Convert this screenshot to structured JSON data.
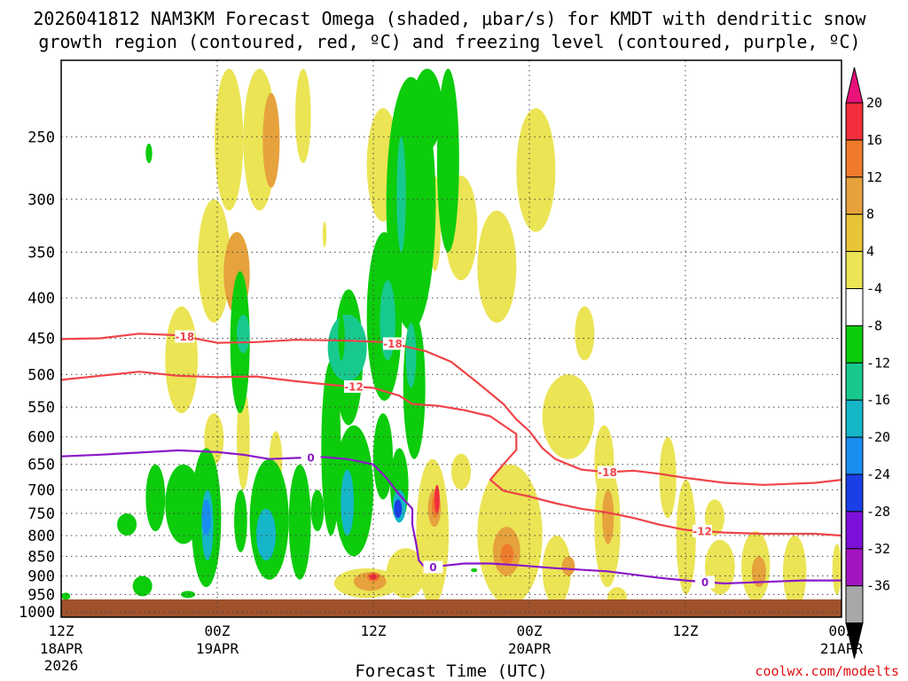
{
  "chart_data": {
    "type": "time-height cross-section (shaded omega with contoured overlays)",
    "title_line1": "2026041812 NAM3KM Forecast Omega (shaded, μbar/s) for KMDT with dendritic snow",
    "title_line2": "growth region (contoured, red, ºC) and freezing level (contoured, purple, ºC)",
    "xlabel": "Forecast Time (UTC)",
    "credit": "coolwx.com/modelts",
    "x_ticks": [
      {
        "label": "12Z",
        "sub1": "18APR",
        "sub2": "2026",
        "hour": 0
      },
      {
        "label": "00Z",
        "sub1": "19APR",
        "sub2": "",
        "hour": 12
      },
      {
        "label": "12Z",
        "sub1": "",
        "sub2": "",
        "hour": 24
      },
      {
        "label": "00Z",
        "sub1": "20APR",
        "sub2": "",
        "hour": 36
      },
      {
        "label": "12Z",
        "sub1": "",
        "sub2": "",
        "hour": 48
      },
      {
        "label": "00Z",
        "sub1": "21APR",
        "sub2": "",
        "hour": 60
      }
    ],
    "x_range_hours": [
      0,
      60
    ],
    "y_ticks_hpa": [
      250,
      300,
      350,
      400,
      450,
      500,
      550,
      600,
      650,
      700,
      750,
      800,
      850,
      900,
      950,
      1000
    ],
    "y_range_hpa": [
      200,
      1015
    ],
    "y_scale": "log-pressure",
    "surface_color": "#a0522d",
    "colorbar": {
      "labels": [
        "20",
        "16",
        "12",
        "8",
        "4",
        "-4",
        "-8",
        "-12",
        "-16",
        "-20",
        "-24",
        "-28",
        "-32",
        "-36"
      ],
      "colors": [
        "#f22d3c",
        "#ef7a2c",
        "#e6a23c",
        "#e8c437",
        "#ebe455",
        "#ffffff",
        "#0ccc0c",
        "#18c98f",
        "#16b6c9",
        "#1a8df0",
        "#1a3fe6",
        "#7d10d9",
        "#a415c2",
        "#a8a8a8"
      ],
      "top_arrow_color": "#e8127a",
      "bottom_arrow_color": "#000000"
    },
    "contours": [
      {
        "name": "-18C dendritic",
        "color": "#ef4448",
        "label": "-18",
        "points": [
          [
            0,
            451
          ],
          [
            3,
            450
          ],
          [
            6,
            444
          ],
          [
            9,
            446
          ],
          [
            12,
            456
          ],
          [
            15,
            455
          ],
          [
            18,
            452
          ],
          [
            22,
            453
          ],
          [
            25,
            455
          ],
          [
            28,
            467
          ],
          [
            30,
            482
          ],
          [
            32,
            512
          ],
          [
            34,
            545
          ],
          [
            35,
            570
          ],
          [
            36,
            590
          ],
          [
            37,
            620
          ],
          [
            38,
            640
          ],
          [
            39,
            650
          ],
          [
            40,
            660
          ],
          [
            42,
            665
          ],
          [
            44,
            662
          ],
          [
            46,
            668
          ],
          [
            48,
            676
          ],
          [
            51,
            686
          ],
          [
            54,
            690
          ],
          [
            58,
            686
          ],
          [
            60,
            680
          ]
        ],
        "label_hours": [
          9.5,
          25.5,
          42
        ]
      },
      {
        "name": "-12C dendritic",
        "color": "#ef4448",
        "label": "-12",
        "points": [
          [
            0,
            508
          ],
          [
            3,
            502
          ],
          [
            6,
            496
          ],
          [
            9,
            502
          ],
          [
            12,
            504
          ],
          [
            15,
            503
          ],
          [
            18,
            510
          ],
          [
            21,
            516
          ],
          [
            24,
            520
          ],
          [
            26,
            532
          ],
          [
            27,
            545
          ],
          [
            29,
            548
          ],
          [
            31,
            555
          ],
          [
            33,
            565
          ],
          [
            35,
            595
          ],
          [
            35,
            623
          ],
          [
            34,
            650
          ],
          [
            33,
            680
          ],
          [
            34,
            702
          ],
          [
            36,
            714
          ],
          [
            38,
            728
          ],
          [
            40,
            740
          ],
          [
            42,
            748
          ],
          [
            44,
            760
          ],
          [
            46,
            775
          ],
          [
            48,
            787
          ],
          [
            51,
            793
          ],
          [
            54,
            796
          ],
          [
            58,
            796
          ],
          [
            60,
            800
          ]
        ],
        "label_hours": [
          22.5,
          49.3
        ]
      },
      {
        "name": "0C freezing level",
        "color": "#8b17c8",
        "label": "0",
        "points": [
          [
            0,
            635
          ],
          [
            3,
            632
          ],
          [
            6,
            628
          ],
          [
            9,
            624
          ],
          [
            12,
            627
          ],
          [
            14,
            632
          ],
          [
            16,
            640
          ],
          [
            18,
            638
          ],
          [
            20,
            636
          ],
          [
            22,
            640
          ],
          [
            24,
            650
          ],
          [
            25,
            676
          ],
          [
            26,
            710
          ],
          [
            27,
            740
          ],
          [
            27,
            775
          ],
          [
            27.3,
            820
          ],
          [
            27.5,
            860
          ],
          [
            28,
            880
          ],
          [
            29,
            875
          ],
          [
            31,
            868
          ],
          [
            33,
            868
          ],
          [
            35,
            872
          ],
          [
            38,
            880
          ],
          [
            42,
            888
          ],
          [
            46,
            905
          ],
          [
            48,
            912
          ],
          [
            51,
            920
          ],
          [
            54,
            916
          ],
          [
            57,
            912
          ],
          [
            60,
            912
          ]
        ],
        "label_hours": [
          19.2,
          28.6,
          49.5
        ]
      }
    ],
    "shaded_cells": [
      {
        "h": [
          11.8,
          14
        ],
        "p": [
          205,
          310
        ],
        "v": 6
      },
      {
        "h": [
          10.5,
          13
        ],
        "p": [
          300,
          430
        ],
        "v": 5
      },
      {
        "h": [
          12.5,
          14.5
        ],
        "p": [
          330,
          420
        ],
        "v": 9
      },
      {
        "h": [
          14,
          16.5
        ],
        "p": [
          205,
          310
        ],
        "v": 6
      },
      {
        "h": [
          15.5,
          16.8
        ],
        "p": [
          220,
          290
        ],
        "v": 10
      },
      {
        "h": [
          18,
          19.2
        ],
        "p": [
          205,
          270
        ],
        "v": 5
      },
      {
        "h": [
          8,
          10.5
        ],
        "p": [
          410,
          560
        ],
        "v": 5
      },
      {
        "h": [
          11,
          12.5
        ],
        "p": [
          560,
          650
        ],
        "v": 5
      },
      {
        "h": [
          23.5,
          26
        ],
        "p": [
          230,
          320
        ],
        "v": 5
      },
      {
        "h": [
          28.3,
          29.2
        ],
        "p": [
          280,
          370
        ],
        "v": 5
      },
      {
        "h": [
          29.5,
          32
        ],
        "p": [
          280,
          380
        ],
        "v": 5
      },
      {
        "h": [
          32,
          35
        ],
        "p": [
          310,
          430
        ],
        "v": 5
      },
      {
        "h": [
          35,
          38
        ],
        "p": [
          230,
          330
        ],
        "v": 5
      },
      {
        "h": [
          39.5,
          41
        ],
        "p": [
          410,
          480
        ],
        "v": 5
      },
      {
        "h": [
          37,
          41
        ],
        "p": [
          500,
          640
        ],
        "v": 5
      },
      {
        "h": [
          41,
          42.5
        ],
        "p": [
          580,
          720
        ],
        "v": 5
      },
      {
        "h": [
          32,
          37
        ],
        "p": [
          650,
          980
        ],
        "v": 5
      },
      {
        "h": [
          33.2,
          35.3
        ],
        "p": [
          780,
          900
        ],
        "v": 9
      },
      {
        "h": [
          33.8,
          34.8
        ],
        "p": [
          820,
          870
        ],
        "v": 13
      },
      {
        "h": [
          37,
          39.2
        ],
        "p": [
          800,
          980
        ],
        "v": 5
      },
      {
        "h": [
          38.5,
          39.5
        ],
        "p": [
          850,
          900
        ],
        "v": 9
      },
      {
        "h": [
          41,
          43
        ],
        "p": [
          650,
          930
        ],
        "v": 5
      },
      {
        "h": [
          41.6,
          42.5
        ],
        "p": [
          700,
          820
        ],
        "v": 9
      },
      {
        "h": [
          42,
          43.5
        ],
        "p": [
          930,
          990
        ],
        "v": 5
      },
      {
        "h": [
          46,
          47.3
        ],
        "p": [
          600,
          760
        ],
        "v": 5
      },
      {
        "h": [
          47.3,
          48.8
        ],
        "p": [
          680,
          950
        ],
        "v": 5
      },
      {
        "h": [
          49.5,
          51
        ],
        "p": [
          720,
          800
        ],
        "v": 5
      },
      {
        "h": [
          49.5,
          51.8
        ],
        "p": [
          810,
          950
        ],
        "v": 5
      },
      {
        "h": [
          52.3,
          54.5
        ],
        "p": [
          790,
          970
        ],
        "v": 5
      },
      {
        "h": [
          53.1,
          54.2
        ],
        "p": [
          850,
          930
        ],
        "v": 9
      },
      {
        "h": [
          55.5,
          57.3
        ],
        "p": [
          800,
          990
        ],
        "v": 5
      },
      {
        "h": [
          59.3,
          60
        ],
        "p": [
          820,
          950
        ],
        "v": 5
      },
      {
        "h": [
          30,
          31.5
        ],
        "p": [
          630,
          700
        ],
        "v": 5
      },
      {
        "h": [
          25,
          28
        ],
        "p": [
          830,
          960
        ],
        "v": 5
      },
      {
        "h": [
          27.3,
          29.8
        ],
        "p": [
          640,
          980
        ],
        "v": 5
      },
      {
        "h": [
          28.2,
          29.2
        ],
        "p": [
          700,
          780
        ],
        "v": 9
      },
      {
        "h": [
          28.5,
          29
        ],
        "p": [
          710,
          760
        ],
        "v": 15
      },
      {
        "h": [
          28.7,
          29.1
        ],
        "p": [
          690,
          750
        ],
        "v": 19
      },
      {
        "h": [
          25,
          26.3
        ],
        "p": [
          640,
          690
        ],
        "v": 6
      },
      {
        "h": [
          21,
          26
        ],
        "p": [
          880,
          960
        ],
        "v": 6
      },
      {
        "h": [
          22.5,
          25
        ],
        "p": [
          890,
          940
        ],
        "v": 9
      },
      {
        "h": [
          23.5,
          24.5
        ],
        "p": [
          890,
          915
        ],
        "v": 15
      },
      {
        "h": [
          23.7,
          24.3
        ],
        "p": [
          895,
          910
        ],
        "v": 19
      },
      {
        "h": [
          13.5,
          14.5
        ],
        "p": [
          520,
          700
        ],
        "v": 6
      },
      {
        "h": [
          16,
          17
        ],
        "p": [
          590,
          700
        ],
        "v": 5
      },
      {
        "h": [
          6.5,
          8
        ],
        "p": [
          650,
          790
        ],
        "v": -6
      },
      {
        "h": [
          4.3,
          5.8
        ],
        "p": [
          750,
          800
        ],
        "v": -6
      },
      {
        "h": [
          8,
          10.8
        ],
        "p": [
          650,
          820
        ],
        "v": -6
      },
      {
        "h": [
          10,
          12.3
        ],
        "p": [
          620,
          930
        ],
        "v": -6
      },
      {
        "h": [
          10.8,
          11.7
        ],
        "p": [
          700,
          860
        ],
        "v": -14
      },
      {
        "h": [
          10.8,
          11.5
        ],
        "p": [
          720,
          800
        ],
        "v": -18
      },
      {
        "h": [
          13,
          14.5
        ],
        "p": [
          370,
          560
        ],
        "v": -6
      },
      {
        "h": [
          13.5,
          14.5
        ],
        "p": [
          420,
          470
        ],
        "v": -10
      },
      {
        "h": [
          13.3,
          14.3
        ],
        "p": [
          700,
          840
        ],
        "v": -6
      },
      {
        "h": [
          14.5,
          17.5
        ],
        "p": [
          640,
          910
        ],
        "v": -6
      },
      {
        "h": [
          15,
          16.5
        ],
        "p": [
          740,
          860
        ],
        "v": -14
      },
      {
        "h": [
          17.5,
          19.2
        ],
        "p": [
          650,
          910
        ],
        "v": -6
      },
      {
        "h": [
          19.2,
          20.2
        ],
        "p": [
          700,
          790
        ],
        "v": -6
      },
      {
        "h": [
          20,
          21.5
        ],
        "p": [
          480,
          800
        ],
        "v": -6
      },
      {
        "h": [
          21,
          23.2
        ],
        "p": [
          390,
          580
        ],
        "v": -6
      },
      {
        "h": [
          21,
          24
        ],
        "p": [
          580,
          850
        ],
        "v": -6
      },
      {
        "h": [
          21.5,
          22.5
        ],
        "p": [
          660,
          800
        ],
        "v": -14
      },
      {
        "h": [
          20.5,
          23.5
        ],
        "p": [
          420,
          510
        ],
        "v": -10
      },
      {
        "h": [
          24,
          25.5
        ],
        "p": [
          560,
          720
        ],
        "v": -6
      },
      {
        "h": [
          23.5,
          26.2
        ],
        "p": [
          330,
          540
        ],
        "v": -6
      },
      {
        "h": [
          24.5,
          25.7
        ],
        "p": [
          380,
          480
        ],
        "v": -10
      },
      {
        "h": [
          25.3,
          26.7
        ],
        "p": [
          620,
          770
        ],
        "v": -6
      },
      {
        "h": [
          25.5,
          26.5
        ],
        "p": [
          700,
          770
        ],
        "v": -14
      },
      {
        "h": [
          25.6,
          26.2
        ],
        "p": [
          720,
          760
        ],
        "v": -20
      },
      {
        "h": [
          26.3,
          28
        ],
        "p": [
          420,
          640
        ],
        "v": -6
      },
      {
        "h": [
          25,
          28.8
        ],
        "p": [
          210,
          440
        ],
        "v": -6
      },
      {
        "h": [
          25.8,
          26.5
        ],
        "p": [
          250,
          350
        ],
        "v": -10
      },
      {
        "h": [
          26.5,
          27.3
        ],
        "p": [
          430,
          520
        ],
        "v": -10
      },
      {
        "h": [
          27,
          29.3
        ],
        "p": [
          205,
          260
        ],
        "v": -6
      },
      {
        "h": [
          27.6,
          28.1
        ],
        "p": [
          260,
          330
        ],
        "v": -6
      },
      {
        "h": [
          28.9,
          30.6
        ],
        "p": [
          205,
          350
        ],
        "v": -6
      },
      {
        "h": [
          21.3,
          21.8
        ],
        "p": [
          420,
          480
        ],
        "v": -6
      },
      {
        "h": [
          26.8,
          27.3
        ],
        "p": [
          360,
          400
        ],
        "v": -6
      },
      {
        "h": [
          5.5,
          7
        ],
        "p": [
          900,
          955
        ],
        "v": -6
      },
      {
        "h": [
          0,
          0.7
        ],
        "p": [
          945,
          965
        ],
        "v": -6
      },
      {
        "h": [
          9.2,
          10.3
        ],
        "p": [
          940,
          960
        ],
        "v": -6
      },
      {
        "h": [
          6.5,
          7
        ],
        "p": [
          255,
          270
        ],
        "v": -6
      },
      {
        "h": [
          20.1,
          20.4
        ],
        "p": [
          320,
          345
        ],
        "v": 5
      },
      {
        "h": [
          31.5,
          32
        ],
        "p": [
          880,
          890
        ],
        "v": -6
      }
    ]
  }
}
